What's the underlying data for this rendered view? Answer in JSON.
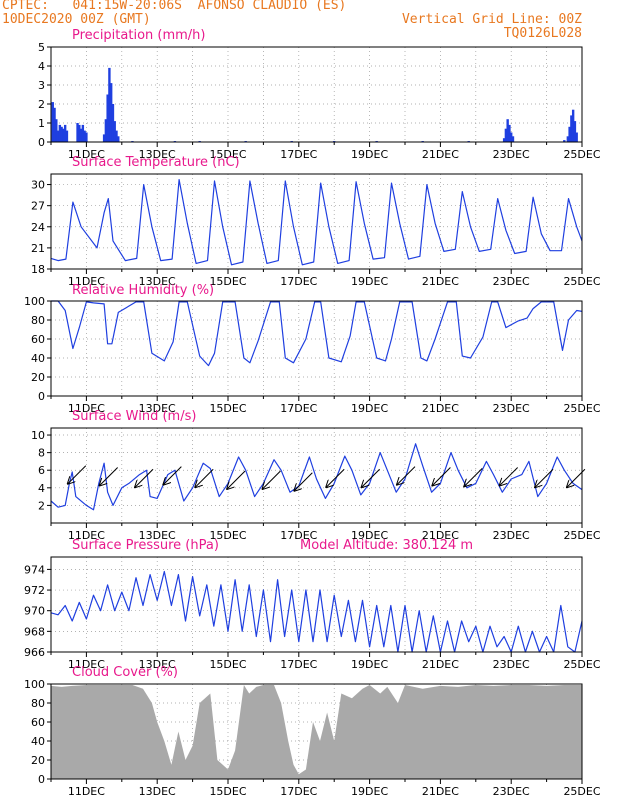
{
  "header": {
    "line1_left": "CPTEC:   041:15W-20:06S  AFONSO CLAUDIO (ES)",
    "line2_left": "10DEC2020 00Z (GMT)",
    "line2_right": "Vertical Grid Line: 00Z",
    "line3_right": "TQ0126L028"
  },
  "colors": {
    "header": "#e87820",
    "title": "#e8198c",
    "series": "#1f3fe0",
    "cloud": "#a9a9a9",
    "grid": "#999999"
  },
  "x_axis": {
    "domain": [
      0,
      15
    ],
    "domain_unit": "days since 10DEC2020 00Z",
    "ticks": [
      {
        "day": 1,
        "label": "11DEC"
      },
      {
        "day": 3,
        "label": "13DEC"
      },
      {
        "day": 5,
        "label": "15DEC"
      },
      {
        "day": 7,
        "label": "17DEC"
      },
      {
        "day": 9,
        "label": "19DEC"
      },
      {
        "day": 11,
        "label": "21DEC"
      },
      {
        "day": 13,
        "label": "23DEC"
      },
      {
        "day": 15,
        "label": "25DEC"
      }
    ],
    "vertical_grid": "daily at 00Z"
  },
  "chart_data": [
    {
      "type": "bar",
      "title": "Precipitation (mm/h)",
      "ylim": [
        0,
        5
      ],
      "yticks": [
        0,
        1,
        2,
        3,
        4,
        5
      ],
      "grid": true,
      "points": [
        [
          0.05,
          2.1
        ],
        [
          0.1,
          1.8
        ],
        [
          0.15,
          1.2
        ],
        [
          0.2,
          0.6
        ],
        [
          0.25,
          0.9
        ],
        [
          0.3,
          0.8
        ],
        [
          0.35,
          0.7
        ],
        [
          0.4,
          0.9
        ],
        [
          0.45,
          0.6
        ],
        [
          0.75,
          1.0
        ],
        [
          0.8,
          0.9
        ],
        [
          0.85,
          0.7
        ],
        [
          0.9,
          0.9
        ],
        [
          0.95,
          0.6
        ],
        [
          1.0,
          0.5
        ],
        [
          1.5,
          0.4
        ],
        [
          1.55,
          1.2
        ],
        [
          1.6,
          2.5
        ],
        [
          1.65,
          3.9
        ],
        [
          1.7,
          3.1
        ],
        [
          1.75,
          2.0
        ],
        [
          1.8,
          1.1
        ],
        [
          1.85,
          0.6
        ],
        [
          1.9,
          0.3
        ],
        [
          2.3,
          0.05
        ],
        [
          3.5,
          0.05
        ],
        [
          4.2,
          0.05
        ],
        [
          5.5,
          0.05
        ],
        [
          6.8,
          0.05
        ],
        [
          8.0,
          0.05
        ],
        [
          9.2,
          0.05
        ],
        [
          10.5,
          0.05
        ],
        [
          11.8,
          0.05
        ],
        [
          12.8,
          0.2
        ],
        [
          12.85,
          0.7
        ],
        [
          12.9,
          1.2
        ],
        [
          12.95,
          0.9
        ],
        [
          13.0,
          0.5
        ],
        [
          13.05,
          0.3
        ],
        [
          14.5,
          0.1
        ],
        [
          14.6,
          0.3
        ],
        [
          14.65,
          0.8
        ],
        [
          14.7,
          1.4
        ],
        [
          14.75,
          1.7
        ],
        [
          14.8,
          1.1
        ],
        [
          14.85,
          0.5
        ]
      ]
    },
    {
      "type": "line",
      "title": "Surface Temperature (nC)",
      "ylim": [
        18,
        31.5
      ],
      "yticks": [
        18,
        21,
        24,
        27,
        30
      ],
      "grid": true,
      "x": [
        0,
        0.2,
        0.42,
        0.62,
        0.85,
        1.3,
        1.5,
        1.62,
        1.75,
        2.1,
        2.42,
        2.62,
        2.85,
        3.1,
        3.42,
        3.62,
        3.85,
        4.1,
        4.42,
        4.62,
        4.85,
        5.1,
        5.42,
        5.62,
        5.85,
        6.1,
        6.42,
        6.62,
        6.85,
        7.1,
        7.42,
        7.62,
        7.85,
        8.1,
        8.42,
        8.62,
        8.85,
        9.1,
        9.42,
        9.62,
        9.85,
        10.1,
        10.42,
        10.62,
        10.85,
        11.1,
        11.42,
        11.62,
        11.85,
        12.1,
        12.42,
        12.62,
        12.85,
        13.1,
        13.42,
        13.62,
        13.85,
        14.1,
        14.42,
        14.62,
        14.85,
        15
      ],
      "y": [
        19.5,
        19.2,
        19.4,
        27.5,
        24,
        21,
        26,
        28,
        22,
        19.2,
        19.5,
        30,
        24,
        19.2,
        19.4,
        30.7,
        24.5,
        18.8,
        19.2,
        30.5,
        24,
        18.6,
        19,
        30.5,
        24.5,
        18.8,
        19.2,
        30.5,
        24,
        18.6,
        19,
        30.2,
        24,
        18.8,
        19.2,
        30.4,
        24.5,
        19.4,
        19.6,
        30.2,
        24.5,
        19.4,
        19.8,
        30,
        24.5,
        20.5,
        20.8,
        29,
        24,
        20.5,
        20.8,
        28,
        23.5,
        20.2,
        20.5,
        28.2,
        23,
        20.6,
        20.6,
        28,
        24,
        22
      ]
    },
    {
      "type": "line",
      "title": "Relative Humidity (%)",
      "ylim": [
        0,
        100
      ],
      "yticks": [
        0,
        20,
        40,
        60,
        80,
        100
      ],
      "grid": true,
      "x": [
        0,
        0.2,
        0.4,
        0.62,
        0.8,
        1.0,
        1.2,
        1.5,
        1.6,
        1.72,
        1.9,
        2.4,
        2.62,
        2.85,
        3.2,
        3.45,
        3.62,
        3.85,
        4.2,
        4.45,
        4.62,
        4.85,
        5.2,
        5.45,
        5.62,
        5.85,
        6.2,
        6.45,
        6.62,
        6.85,
        7.2,
        7.45,
        7.62,
        7.85,
        8.2,
        8.45,
        8.62,
        8.85,
        9.2,
        9.45,
        9.62,
        9.85,
        10.2,
        10.45,
        10.62,
        10.85,
        11.2,
        11.45,
        11.62,
        11.85,
        12.2,
        12.45,
        12.62,
        12.85,
        13.2,
        13.45,
        13.62,
        13.85,
        14.2,
        14.45,
        14.62,
        14.85,
        15
      ],
      "y": [
        100,
        100,
        90,
        50,
        72,
        99,
        98,
        97,
        55,
        55,
        88,
        99,
        99,
        45,
        37,
        57,
        99,
        99,
        42,
        32,
        45,
        99,
        99,
        40,
        35,
        58,
        99,
        99,
        40,
        35,
        60,
        99,
        99,
        40,
        36,
        63,
        99,
        99,
        40,
        37,
        60,
        99,
        99,
        40,
        37,
        60,
        99,
        99,
        42,
        40,
        62,
        99,
        99,
        72,
        79,
        82,
        92,
        99,
        99,
        48,
        80,
        90,
        89
      ]
    },
    {
      "type": "line",
      "title": "Surface Wind (m/s)",
      "ylim": [
        0,
        10.8
      ],
      "yticks": [
        2,
        4,
        6,
        8,
        10
      ],
      "grid": true,
      "x": [
        0,
        0.2,
        0.4,
        0.52,
        0.6,
        0.7,
        1.0,
        1.2,
        1.35,
        1.5,
        1.6,
        1.75,
        2.0,
        2.2,
        2.5,
        2.7,
        2.8,
        3.0,
        3.3,
        3.5,
        3.75,
        4.0,
        4.3,
        4.5,
        4.75,
        5.0,
        5.3,
        5.5,
        5.75,
        6.0,
        6.3,
        6.5,
        6.75,
        7.0,
        7.3,
        7.5,
        7.75,
        8.0,
        8.3,
        8.5,
        8.75,
        9.0,
        9.3,
        9.5,
        9.75,
        10.0,
        10.3,
        10.5,
        10.75,
        11.0,
        11.3,
        11.5,
        11.75,
        12.0,
        12.3,
        12.5,
        12.75,
        13.0,
        13.3,
        13.5,
        13.75,
        14.0,
        14.3,
        14.5,
        14.75,
        15
      ],
      "y": [
        2.5,
        1.8,
        2.0,
        4.5,
        5.8,
        3.0,
        2.0,
        1.5,
        4.5,
        6.8,
        3.5,
        2.0,
        4.0,
        4.5,
        5.5,
        6.0,
        3.0,
        2.8,
        5.5,
        6.0,
        2.5,
        4.0,
        6.8,
        6.2,
        3.0,
        4.5,
        7.5,
        6.0,
        3.0,
        4.5,
        7.2,
        6.0,
        3.5,
        4.2,
        7.5,
        5.0,
        2.8,
        4.5,
        7.6,
        6.0,
        3.2,
        4.5,
        8.0,
        6.0,
        3.5,
        5.0,
        9.0,
        6.5,
        3.5,
        4.5,
        8.0,
        6.0,
        4.0,
        4.5,
        7.0,
        5.5,
        3.5,
        5.0,
        5.5,
        7.0,
        3.0,
        4.5,
        7.5,
        6.0,
        4.5,
        3.8
      ]
    },
    {
      "type": "line",
      "title": "Surface Pressure (hPa)",
      "annotation": "Model Altitude: 380.124 m",
      "ylim": [
        966,
        975.2
      ],
      "yticks": [
        966,
        968,
        970,
        972,
        974
      ],
      "grid": true,
      "x": [
        0,
        0.2,
        0.4,
        0.6,
        0.8,
        1.0,
        1.2,
        1.4,
        1.6,
        1.8,
        2.0,
        2.2,
        2.4,
        2.6,
        2.8,
        3.0,
        3.2,
        3.4,
        3.6,
        3.8,
        4.0,
        4.2,
        4.4,
        4.6,
        4.8,
        5.0,
        5.2,
        5.4,
        5.6,
        5.8,
        6.0,
        6.2,
        6.4,
        6.6,
        6.8,
        7.0,
        7.2,
        7.4,
        7.6,
        7.8,
        8.0,
        8.2,
        8.4,
        8.6,
        8.8,
        9.0,
        9.2,
        9.4,
        9.6,
        9.8,
        10.0,
        10.2,
        10.4,
        10.6,
        10.8,
        11.0,
        11.2,
        11.4,
        11.6,
        11.8,
        12.0,
        12.2,
        12.4,
        12.6,
        12.8,
        13.0,
        13.2,
        13.4,
        13.6,
        13.8,
        14.0,
        14.2,
        14.4,
        14.6,
        14.8,
        15
      ],
      "y": [
        969.8,
        969.6,
        970.5,
        969.0,
        970.8,
        969.2,
        971.5,
        970.0,
        972.5,
        970.0,
        971.8,
        970.0,
        973.2,
        970.5,
        973.5,
        971.0,
        973.8,
        970.5,
        973.5,
        969.0,
        973.3,
        969.5,
        972.5,
        968.5,
        972.5,
        968.0,
        973.0,
        968.0,
        972.5,
        967.5,
        972.0,
        967.0,
        973.0,
        967.5,
        972.0,
        967.0,
        972.0,
        967.0,
        972.0,
        967.0,
        971.5,
        967.5,
        971.0,
        967.0,
        971.0,
        966.5,
        970.5,
        966.5,
        970.5,
        966.0,
        970.5,
        966.0,
        970.0,
        966.0,
        969.5,
        965.5,
        969.0,
        966.0,
        969.0,
        967.0,
        968.5,
        966.0,
        968.5,
        966.5,
        967.5,
        966.0,
        968.5,
        966.0,
        968.0,
        965.8,
        967.5,
        966.0,
        970.5,
        966.5,
        966.0,
        969.0
      ]
    },
    {
      "type": "area",
      "title": "Cloud Cover (%)",
      "ylim": [
        0,
        100
      ],
      "yticks": [
        0,
        20,
        40,
        60,
        80,
        100
      ],
      "grid": true,
      "x": [
        0,
        0.3,
        0.6,
        1.0,
        1.5,
        1.9,
        2.0,
        2.3,
        2.6,
        2.85,
        3.0,
        3.2,
        3.4,
        3.6,
        3.8,
        4.0,
        4.2,
        4.5,
        4.7,
        5.0,
        5.2,
        5.45,
        5.6,
        5.8,
        6.0,
        6.3,
        6.5,
        6.7,
        6.85,
        7.0,
        7.2,
        7.4,
        7.6,
        7.8,
        8.0,
        8.2,
        8.5,
        8.8,
        9.0,
        9.3,
        9.5,
        9.8,
        10.0,
        10.5,
        11.0,
        11.5,
        12.0,
        12.5,
        13.0,
        13.5,
        14.0,
        14.5,
        15
      ],
      "y": [
        98,
        97,
        98,
        99,
        99,
        99,
        99,
        99,
        95,
        80,
        60,
        40,
        15,
        50,
        20,
        35,
        80,
        90,
        20,
        10,
        30,
        99,
        90,
        97,
        99,
        99,
        80,
        40,
        15,
        5,
        10,
        60,
        40,
        70,
        40,
        90,
        85,
        95,
        99,
        90,
        97,
        80,
        99,
        95,
        98,
        97,
        99,
        98,
        99,
        99,
        98,
        99,
        99
      ]
    }
  ],
  "wind_barbs": {
    "description": "wind direction arrows",
    "x": [
      0.7,
      1.6,
      2.6,
      3.4,
      4.3,
      5.2,
      6.2,
      7.1,
      8.0,
      9.0,
      10.0,
      11.0,
      11.9,
      12.9,
      13.9,
      14.8
    ],
    "y": [
      5.6,
      5.4,
      5.2,
      5.5,
      5.2,
      5.0,
      5.0,
      4.8,
      5.2,
      5.2,
      5.5,
      5.4,
      5.3,
      5.4,
      5.2,
      5.2
    ]
  }
}
